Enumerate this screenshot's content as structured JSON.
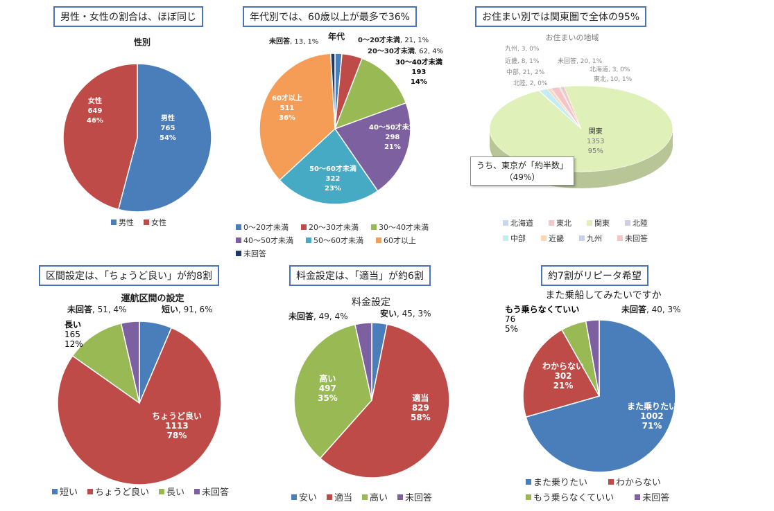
{
  "callouts": [
    "男性・女性の割合は、ほぼ同じ",
    "年代別では、60歳以上が最多で36%",
    "お住まい別では関東圏で全体の95%",
    "区間設定は、「ちょうど良い」が約8割",
    "料金設定は、「適当」が約6割",
    "約7割がリピータ希望"
  ],
  "chart_data": [
    {
      "type": "pie",
      "title": "性別",
      "categories": [
        "男性",
        "女性"
      ],
      "values": [
        765,
        649
      ],
      "percent": [
        "54%",
        "46%"
      ],
      "colors": [
        "#4a7ebb",
        "#be4b48"
      ],
      "legend": "bottom"
    },
    {
      "type": "pie",
      "title": "年代",
      "categories": [
        "0～20才未満",
        "20～30才未満",
        "30～40才未満",
        "40～50才未満",
        "50～60才未満",
        "60才以上",
        "未回答"
      ],
      "values": [
        21,
        62,
        193,
        298,
        322,
        511,
        13
      ],
      "percent": [
        "1%",
        "4%",
        "14%",
        "21%",
        "23%",
        "36%",
        "1%"
      ],
      "colors": [
        "#4a7ebb",
        "#be4b48",
        "#98b954",
        "#7d60a0",
        "#46aac5",
        "#f59d56",
        "#1f3864"
      ],
      "legend": "bottom"
    },
    {
      "type": "pie",
      "title": "お住まいの地域",
      "categories": [
        "北海道",
        "東北",
        "関東",
        "北陸",
        "中部",
        "近畿",
        "九州",
        "未回答"
      ],
      "values": [
        3,
        10,
        1353,
        2,
        21,
        8,
        3,
        20
      ],
      "percent": [
        "0%",
        "1%",
        "95%",
        "0%",
        "2%",
        "1%",
        "0%",
        "1%"
      ],
      "colors": [
        "#c5d9f1",
        "#f2c9c9",
        "#dff0b8",
        "#d4cce6",
        "#c3ecf4",
        "#fcd6b5",
        "#c9d1e3",
        "#f6c4c4"
      ],
      "legend": "bottom",
      "annotation": "うち、東京が「約半数」\n（49%）"
    },
    {
      "type": "pie",
      "title": "運航区間の設定",
      "categories": [
        "短い",
        "ちょうど良い",
        "長い",
        "未回答"
      ],
      "values": [
        91,
        1113,
        165,
        51
      ],
      "percent": [
        "6%",
        "78%",
        "12%",
        "4%"
      ],
      "colors": [
        "#4a7ebb",
        "#be4b48",
        "#98b954",
        "#7d60a0"
      ],
      "legend": "bottom"
    },
    {
      "type": "pie",
      "title": "料金設定",
      "categories": [
        "安い",
        "適当",
        "高い",
        "未回答"
      ],
      "values": [
        45,
        829,
        497,
        49
      ],
      "percent": [
        "3%",
        "58%",
        "35%",
        "4%"
      ],
      "colors": [
        "#4a7ebb",
        "#be4b48",
        "#98b954",
        "#7d60a0"
      ],
      "legend": "bottom"
    },
    {
      "type": "pie",
      "title": "また乗船してみたいですか",
      "categories": [
        "また乗りたい",
        "わからない",
        "もう乗らなくていい",
        "未回答"
      ],
      "values": [
        1002,
        302,
        76,
        40
      ],
      "percent": [
        "71%",
        "21%",
        "5%",
        "3%"
      ],
      "colors": [
        "#4a7ebb",
        "#be4b48",
        "#98b954",
        "#7d60a0"
      ],
      "legend": "bottom"
    }
  ]
}
